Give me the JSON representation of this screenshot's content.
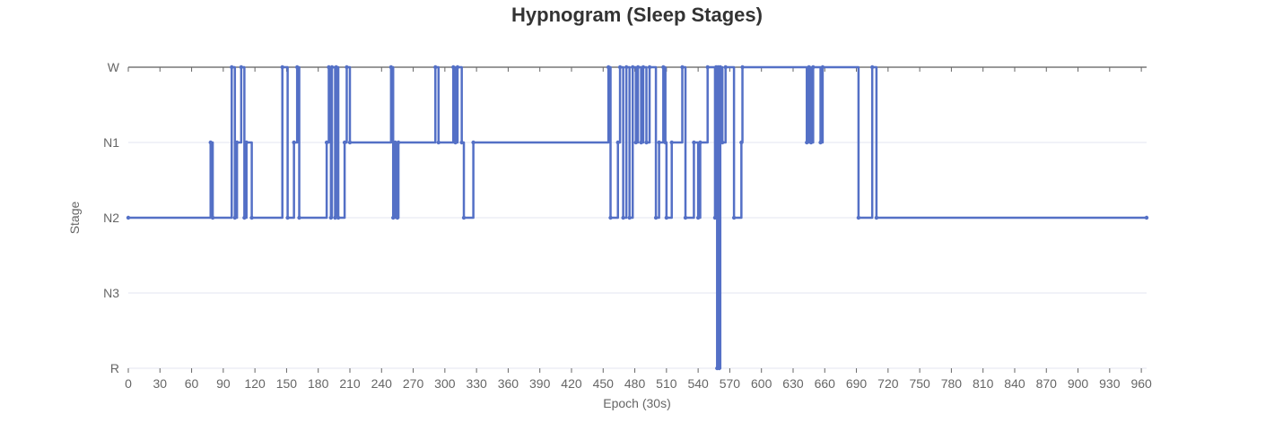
{
  "chart_data": {
    "type": "line",
    "title": "Hypnogram (Sleep Stages)",
    "xlabel": "Epoch (30s)",
    "ylabel": "Stage",
    "xlim": [
      0,
      965
    ],
    "x_ticks": [
      0,
      30,
      60,
      90,
      120,
      150,
      180,
      210,
      240,
      270,
      300,
      330,
      360,
      390,
      420,
      450,
      480,
      510,
      540,
      570,
      600,
      630,
      660,
      690,
      720,
      750,
      780,
      810,
      840,
      870,
      900,
      930,
      960
    ],
    "y_categories": [
      "W",
      "N1",
      "N2",
      "N3",
      "R"
    ],
    "step": "end",
    "grid": true,
    "colors": {
      "series": "#5470c6",
      "grid": "#e3e6f0",
      "axis": "#333333",
      "text": "#666666",
      "title": "#333333"
    },
    "series": [
      {
        "points": [
          [
            0,
            "N2"
          ],
          [
            78,
            "N1"
          ],
          [
            80,
            "N2"
          ],
          [
            98,
            "W"
          ],
          [
            101,
            "N2"
          ],
          [
            103,
            "N1"
          ],
          [
            107,
            "W"
          ],
          [
            110,
            "N2"
          ],
          [
            112,
            "N1"
          ],
          [
            117,
            "N2"
          ],
          [
            146,
            "W"
          ],
          [
            151,
            "N2"
          ],
          [
            157,
            "N1"
          ],
          [
            160,
            "W"
          ],
          [
            162,
            "N2"
          ],
          [
            188,
            "N1"
          ],
          [
            190,
            "W"
          ],
          [
            192,
            "N2"
          ],
          [
            193,
            "W"
          ],
          [
            196,
            "N2"
          ],
          [
            197,
            "W"
          ],
          [
            199,
            "N2"
          ],
          [
            205,
            "N1"
          ],
          [
            207,
            "W"
          ],
          [
            210,
            "N1"
          ],
          [
            249,
            "W"
          ],
          [
            251,
            "N2"
          ],
          [
            253,
            "N1"
          ],
          [
            255,
            "N2"
          ],
          [
            256,
            "N1"
          ],
          [
            291,
            "W"
          ],
          [
            294,
            "N1"
          ],
          [
            308,
            "W"
          ],
          [
            310,
            "N1"
          ],
          [
            312,
            "W"
          ],
          [
            316,
            "N1"
          ],
          [
            318,
            "N2"
          ],
          [
            327,
            "N1"
          ],
          [
            455,
            "W"
          ],
          [
            457,
            "N2"
          ],
          [
            464,
            "N1"
          ],
          [
            466,
            "W"
          ],
          [
            469,
            "N2"
          ],
          [
            472,
            "W"
          ],
          [
            475,
            "N2"
          ],
          [
            478,
            "W"
          ],
          [
            481,
            "N1"
          ],
          [
            483,
            "W"
          ],
          [
            486,
            "N1"
          ],
          [
            488,
            "W"
          ],
          [
            491,
            "N1"
          ],
          [
            494,
            "W"
          ],
          [
            500,
            "N2"
          ],
          [
            503,
            "N1"
          ],
          [
            507,
            "W"
          ],
          [
            509,
            "N1"
          ],
          [
            510,
            "N2"
          ],
          [
            515,
            "N1"
          ],
          [
            525,
            "W"
          ],
          [
            528,
            "N2"
          ],
          [
            536,
            "N1"
          ],
          [
            540,
            "N2"
          ],
          [
            542,
            "N1"
          ],
          [
            549,
            "W"
          ],
          [
            556,
            "N2"
          ],
          [
            557,
            "W"
          ],
          [
            558,
            "R"
          ],
          [
            559,
            "W"
          ],
          [
            560,
            "R"
          ],
          [
            561,
            "W"
          ],
          [
            563,
            "N1"
          ],
          [
            566,
            "W"
          ],
          [
            574,
            "N2"
          ],
          [
            581,
            "N1"
          ],
          [
            582,
            "W"
          ],
          [
            643,
            "N1"
          ],
          [
            645,
            "W"
          ],
          [
            647,
            "N1"
          ],
          [
            649,
            "W"
          ],
          [
            656,
            "N1"
          ],
          [
            658,
            "W"
          ],
          [
            692,
            "N2"
          ],
          [
            705,
            "W"
          ],
          [
            709,
            "N2"
          ],
          [
            965,
            "N2"
          ]
        ]
      }
    ]
  }
}
